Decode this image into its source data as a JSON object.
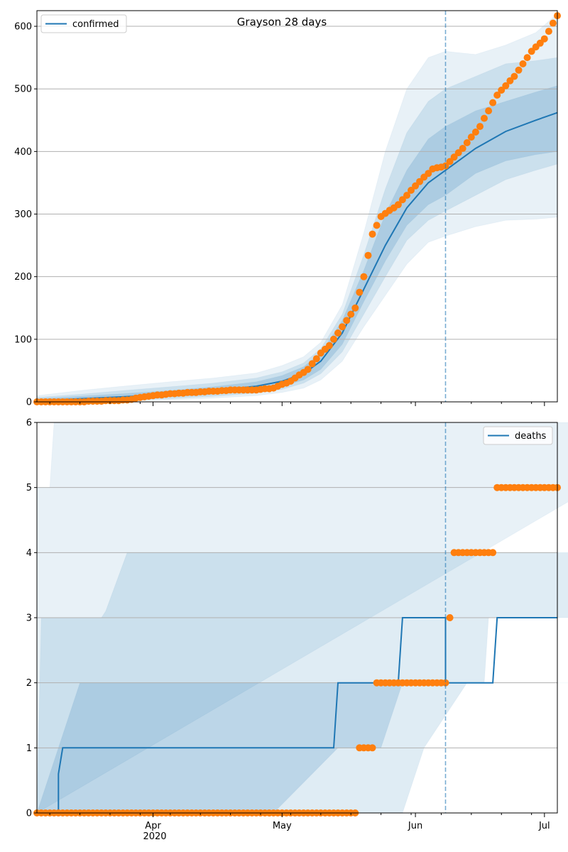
{
  "chart_data": [
    {
      "type": "line",
      "title": "Grayson 28 days",
      "legend": {
        "labels": [
          "confirmed"
        ],
        "position": "top-left"
      },
      "grid": "y",
      "ylim": [
        0,
        625
      ],
      "yticks": [
        0,
        100,
        200,
        300,
        400,
        500,
        600
      ],
      "xlim": [
        "2020-03-05",
        "2020-07-04"
      ],
      "forecast_start": "2020-06-08",
      "series": [
        {
          "name": "confirmed",
          "kind": "model-median",
          "color": "#1f77b4",
          "x": [
            "2020-03-05",
            "2020-03-15",
            "2020-03-25",
            "2020-04-05",
            "2020-04-15",
            "2020-04-25",
            "2020-05-01",
            "2020-05-06",
            "2020-05-10",
            "2020-05-15",
            "2020-05-20",
            "2020-05-25",
            "2020-05-30",
            "2020-06-04",
            "2020-06-08",
            "2020-06-15",
            "2020-06-22",
            "2020-06-29",
            "2020-07-04"
          ],
          "y": [
            2,
            5,
            8,
            12,
            18,
            25,
            33,
            45,
            65,
            110,
            180,
            250,
            310,
            350,
            370,
            405,
            432,
            450,
            462
          ]
        },
        {
          "name": "",
          "kind": "observed",
          "color": "#ff7f0e",
          "x": [
            "2020-03-05",
            "2020-03-15",
            "2020-03-26",
            "2020-03-30",
            "2020-04-05",
            "2020-04-15",
            "2020-04-20",
            "2020-04-25",
            "2020-04-29",
            "2020-05-03",
            "2020-05-07",
            "2020-05-10",
            "2020-05-12",
            "2020-05-14",
            "2020-05-16",
            "2020-05-18",
            "2020-05-20",
            "2020-05-22",
            "2020-05-24",
            "2020-05-28",
            "2020-06-01",
            "2020-06-05",
            "2020-06-08",
            "2020-06-12",
            "2020-06-16",
            "2020-06-20",
            "2020-06-24",
            "2020-06-28",
            "2020-07-01",
            "2020-07-04"
          ],
          "y": [
            0,
            0,
            3,
            8,
            13,
            17,
            19,
            19,
            22,
            33,
            52,
            78,
            90,
            110,
            130,
            150,
            200,
            268,
            296,
            315,
            345,
            372,
            377,
            405,
            440,
            490,
            520,
            560,
            580,
            617
          ]
        }
      ],
      "bands": [
        {
          "lo": [
            0,
            0,
            1,
            3,
            6,
            10,
            15,
            22,
            35,
            65,
            120,
            170,
            220,
            255,
            265,
            280,
            290,
            292,
            295
          ],
          "hi": [
            10,
            18,
            25,
            32,
            38,
            46,
            58,
            72,
            95,
            155,
            270,
            400,
            500,
            550,
            560,
            555,
            570,
            590,
            620
          ]
        },
        {
          "lo": [
            0,
            1,
            3,
            5,
            9,
            14,
            20,
            30,
            45,
            80,
            140,
            200,
            258,
            290,
            305,
            330,
            355,
            370,
            380
          ],
          "hi": [
            7,
            12,
            18,
            24,
            30,
            38,
            48,
            62,
            85,
            140,
            235,
            340,
            430,
            480,
            500,
            520,
            540,
            545,
            550
          ]
        },
        {
          "lo": [
            1,
            2,
            5,
            8,
            12,
            18,
            25,
            35,
            52,
            92,
            160,
            225,
            282,
            315,
            330,
            365,
            385,
            395,
            400
          ],
          "hi": [
            5,
            9,
            13,
            18,
            24,
            32,
            42,
            56,
            78,
            130,
            210,
            300,
            370,
            420,
            440,
            465,
            480,
            495,
            505
          ]
        }
      ]
    },
    {
      "type": "line",
      "title": "",
      "legend": {
        "labels": [
          "deaths"
        ],
        "position": "top-right"
      },
      "grid": "y",
      "ylim": [
        0,
        6
      ],
      "yticks": [
        0,
        1,
        2,
        3,
        4,
        5,
        6
      ],
      "xlim": [
        "2020-03-05",
        "2020-07-04"
      ],
      "xticks": [
        "Apr",
        "May",
        "Jun",
        "Jul"
      ],
      "xtick_dates": [
        "2020-04-01",
        "2020-05-01",
        "2020-06-01",
        "2020-07-01"
      ],
      "year_label": "2020",
      "forecast_start": "2020-06-08",
      "series": [
        {
          "name": "deaths",
          "kind": "model-median",
          "color": "#1f77b4",
          "x": [
            "2020-03-05",
            "2020-03-10",
            "2020-03-10",
            "2020-03-11",
            "2020-05-13",
            "2020-05-14",
            "2020-05-28",
            "2020-05-29",
            "2020-06-08",
            "2020-06-08",
            "2020-06-19",
            "2020-06-20",
            "2020-07-04"
          ],
          "y": [
            0,
            0,
            0.6,
            1,
            1,
            2,
            2,
            3,
            3,
            2,
            2,
            3,
            3
          ]
        },
        {
          "name": "",
          "kind": "observed",
          "color": "#ff7f0e",
          "x": [
            "2020-03-05",
            "2020-05-18",
            "2020-05-19",
            "2020-05-22",
            "2020-05-23",
            "2020-06-08",
            "2020-06-09",
            "2020-06-10",
            "2020-06-19",
            "2020-06-20",
            "2020-07-04"
          ],
          "y": [
            0,
            0,
            1,
            1,
            2,
            2,
            3,
            4,
            4,
            5,
            5
          ]
        }
      ],
      "bands": [
        {
          "lo": [
            [
              0,
              0
            ]
          ],
          "hi": [
            [
              0,
              5
            ],
            [
              3,
              5
            ],
            [
              4,
              6
            ],
            [
              155,
              6
            ]
          ]
        },
        {
          "lo": [
            [
              0,
              0
            ],
            [
              85,
              0
            ],
            [
              90,
              1
            ],
            [
              100,
              2
            ],
            [
              104,
              2
            ],
            [
              105,
              3
            ],
            [
              148,
              3
            ],
            [
              150,
              4
            ],
            [
              155,
              4
            ]
          ],
          "hi": [
            [
              0,
              0
            ],
            [
              1,
              3
            ],
            [
              15,
              3
            ],
            [
              16,
              3.1
            ],
            [
              21,
              4
            ],
            [
              155,
              4
            ]
          ]
        },
        {
          "lo": [
            [
              0,
              0
            ],
            [
              50,
              0
            ],
            [
              55,
              0
            ],
            [
              70,
              1
            ],
            [
              80,
              1
            ],
            [
              85,
              2
            ],
            [
              155,
              2
            ]
          ],
          "hi": [
            [
              0,
              0
            ],
            [
              10,
              2
            ],
            [
              155,
              2
            ]
          ]
        }
      ]
    }
  ]
}
